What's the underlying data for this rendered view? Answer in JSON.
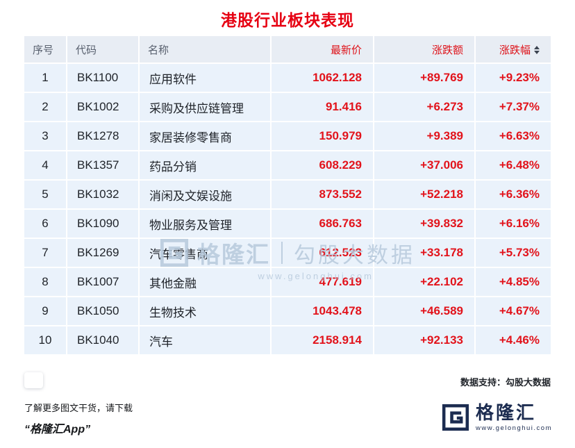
{
  "title": "港股行业板块表现",
  "chart_data": {
    "type": "table",
    "title": "港股行业板块表现",
    "columns": [
      "序号",
      "代码",
      "名称",
      "最新价",
      "涨跌额",
      "涨跌幅"
    ],
    "rows": [
      [
        "1",
        "BK1100",
        "应用软件",
        "1062.128",
        "+89.769",
        "+9.23%"
      ],
      [
        "2",
        "BK1002",
        "采购及供应链管理",
        "91.416",
        "+6.273",
        "+7.37%"
      ],
      [
        "3",
        "BK1278",
        "家居装修零售商",
        "150.979",
        "+9.389",
        "+6.63%"
      ],
      [
        "4",
        "BK1357",
        "药品分销",
        "608.229",
        "+37.006",
        "+6.48%"
      ],
      [
        "5",
        "BK1032",
        "消闲及文娱设施",
        "873.552",
        "+52.218",
        "+6.36%"
      ],
      [
        "6",
        "BK1090",
        "物业服务及管理",
        "686.763",
        "+39.832",
        "+6.16%"
      ],
      [
        "7",
        "BK1269",
        "汽车零售商",
        "612.523",
        "+33.178",
        "+5.73%"
      ],
      [
        "8",
        "BK1007",
        "其他金融",
        "477.619",
        "+22.102",
        "+4.85%"
      ],
      [
        "9",
        "BK1050",
        "生物技术",
        "1043.478",
        "+46.589",
        "+4.67%"
      ],
      [
        "10",
        "BK1040",
        "汽车",
        "2158.914",
        "+92.133",
        "+4.46%"
      ]
    ]
  },
  "watermark": {
    "brand": "格隆汇",
    "text": "勾股大数据",
    "url": "www.gelonghui.com"
  },
  "footer": {
    "data_support": "数据支持：勾股大数据",
    "promo_line1": "了解更多图文干货，请下载",
    "promo_line2": "“格隆汇App”",
    "logo_text": "格隆汇",
    "logo_url": "www.gelonghui.com"
  },
  "colors": {
    "accent_red": "#e60012",
    "logo_navy": "#1c2c50",
    "row_blue": "#eaf2fb",
    "header_blue_gray": "#e8edf4",
    "watermark_blue": "#b7c9dc"
  }
}
